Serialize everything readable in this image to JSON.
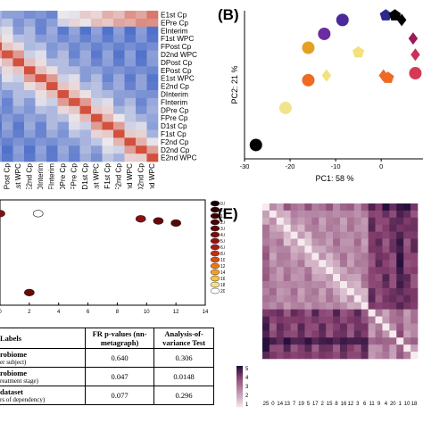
{
  "panel_a": {
    "row_labels": [
      "E1st Cp",
      "EPre Cp",
      "EInterim",
      "F1st WPC",
      "FPost Cp",
      "D2nd WPC",
      "DPost Cp",
      "EPost Cp",
      "E1st WPC",
      "E2nd Cp",
      "DInterim",
      "FInterim",
      "DPre Cp",
      "FPre Cp",
      "D1st Cp",
      "F1st Cp",
      "F2nd Cp",
      "D2nd Cp",
      "E2nd WPC"
    ],
    "col_labels": [
      "EPost Cp",
      "E1st WPC",
      "E2nd Cp",
      "DInterim",
      "FInterim",
      "DPre Cp",
      "FPre Cp",
      "D1st Cp",
      "D1st WPC",
      "F1st Cp",
      "F2nd Cp",
      "F2nd WPC",
      "D2nd Cp",
      "E2nd WPC"
    ]
  },
  "panel_b": {
    "label": "(B)",
    "chart_data": {
      "type": "scatter",
      "xlabel": "PC1: 58 %",
      "ylabel": "PC2: 21 %",
      "x_ticks": [
        "-30",
        "-20",
        "-10",
        "0"
      ],
      "xlim": [
        -30,
        8
      ],
      "ylim": [
        -20,
        12
      ],
      "points": [
        {
          "x": -27.5,
          "y": -17,
          "color": "#000000",
          "shape": "circle"
        },
        {
          "x": -21,
          "y": -9,
          "color": "#f1e38e",
          "shape": "circle"
        },
        {
          "x": -16,
          "y": -3,
          "color": "#ef6a23",
          "shape": "circle"
        },
        {
          "x": -16,
          "y": 4,
          "color": "#e5a024",
          "shape": "circle"
        },
        {
          "x": -12.5,
          "y": 7,
          "color": "#6a2ca0",
          "shape": "circle"
        },
        {
          "x": -12,
          "y": -2,
          "color": "#f3e27c",
          "shape": "diamond"
        },
        {
          "x": -8.5,
          "y": 10,
          "color": "#4a2a9a",
          "shape": "circle"
        },
        {
          "x": -5,
          "y": 3,
          "color": "#f3e27c",
          "shape": "pentagon"
        },
        {
          "x": 0.5,
          "y": -2,
          "color": "#ef6a23",
          "shape": "diamond"
        },
        {
          "x": 1.5,
          "y": -2.5,
          "color": "#ef6a23",
          "shape": "pentagon"
        },
        {
          "x": 1,
          "y": 11,
          "color": "#2a2a8a",
          "shape": "pentagon"
        },
        {
          "x": 3,
          "y": 11,
          "color": "#000000",
          "shape": "pentagon"
        },
        {
          "x": 4.5,
          "y": 10,
          "color": "#000000",
          "shape": "diamond"
        },
        {
          "x": 7,
          "y": 6,
          "color": "#9a1b58",
          "shape": "diamond"
        },
        {
          "x": 7.5,
          "y": 2.5,
          "color": "#c9305a",
          "shape": "diamond"
        },
        {
          "x": 7.5,
          "y": -1.5,
          "color": "#d53a55",
          "shape": "circle"
        }
      ]
    }
  },
  "panel_c": {
    "chart_data": {
      "type": "scatter",
      "x_ticks": [
        "0",
        "2",
        "4",
        "6",
        "8",
        "10",
        "12",
        "14"
      ],
      "xlim": [
        0,
        14
      ],
      "ylim": [
        0,
        10
      ],
      "points": [
        {
          "x": 0.0,
          "y": 8.7,
          "color": "#8a1010"
        },
        {
          "x": 2.6,
          "y": 8.7,
          "color": "#ffffff"
        },
        {
          "x": 2.0,
          "y": 1.2,
          "color": "#6a0808"
        },
        {
          "x": 9.6,
          "y": 8.2,
          "color": "#8a1010"
        },
        {
          "x": 10.8,
          "y": 8.0,
          "color": "#6a0808"
        },
        {
          "x": 12.0,
          "y": 7.8,
          "color": "#5a0606"
        }
      ],
      "legend": [
        "0.5",
        "1.0",
        "1.5",
        "2.0",
        "3.0",
        "4.0",
        "5.0",
        "6.0",
        "8.0",
        "10.0",
        "12.0",
        "14.0",
        "16.0",
        "18.0",
        "20.0"
      ]
    }
  },
  "panel_d_table": {
    "headers": [
      "Labels",
      "FR p-values (nn-metagraph)",
      "Analysis-of-variance Test"
    ],
    "rows": [
      {
        "main": "robiome",
        "sub": "er subject)",
        "fr": "0.640",
        "anova": "0.306"
      },
      {
        "main": "robiome",
        "sub": "reatment stage)",
        "fr": "0.047",
        "anova": "0.0148"
      },
      {
        "main": "dataset",
        "sub": "rs of dependency)",
        "fr": "0.077",
        "anova": "0.296"
      }
    ]
  },
  "panel_e": {
    "label": "(E)",
    "colorbar_ticks": [
      "5",
      "4",
      "3",
      "2",
      "1"
    ],
    "x_tick_labels": [
      "25",
      "0",
      "14",
      "13",
      "7",
      "19",
      "5",
      "17",
      "2",
      "15",
      "8",
      "16",
      "12",
      "3",
      "6",
      "11",
      "9",
      "4",
      "20",
      "1",
      "10",
      "18"
    ]
  }
}
